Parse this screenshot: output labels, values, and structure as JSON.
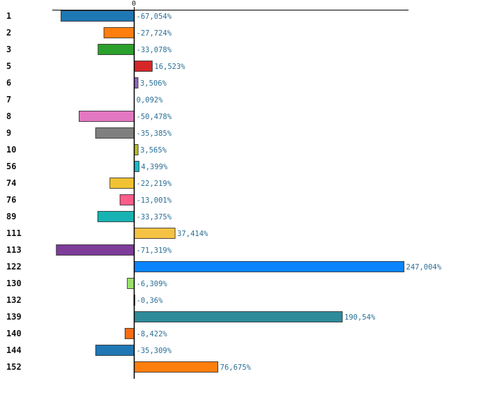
{
  "chart_data": {
    "type": "bar",
    "orientation": "horizontal",
    "title": "",
    "xlabel": "",
    "ylabel": "",
    "grid": false,
    "xlim": [
      -92,
      273
    ],
    "zero_tick": "0",
    "categories": [
      "1",
      "2",
      "3",
      "5",
      "6",
      "7",
      "8",
      "9",
      "10",
      "56",
      "74",
      "76",
      "89",
      "111",
      "113",
      "122",
      "130",
      "132",
      "139",
      "140",
      "144",
      "152"
    ],
    "values": [
      -67.054,
      -27.724,
      -33.078,
      16.523,
      3.506,
      0.092,
      -50.478,
      -35.385,
      3.565,
      4.399,
      -22.219,
      -13.001,
      -33.375,
      37.414,
      -71.319,
      247.004,
      -6.309,
      -0.36,
      190.54,
      -8.422,
      -35.309,
      76.675
    ],
    "value_labels": [
      "-67,054%",
      "-27,724%",
      "-33,078%",
      "16,523%",
      "3,506%",
      "0,092%",
      "-50,478%",
      "-35,385%",
      "3,565%",
      "4,399%",
      "-22,219%",
      "-13,001%",
      "-33,375%",
      "37,414%",
      "-71,319%",
      "247,004%",
      "-6,309%",
      "-0,36%",
      "190,54%",
      "-8,422%",
      "-35,309%",
      "76,675%"
    ],
    "colors": [
      "#1f77b4",
      "#ff7f0e",
      "#2ca02c",
      "#d62728",
      "#9467bd",
      "#8c564b",
      "#e377c2",
      "#7f7f7f",
      "#bcbd22",
      "#17becf",
      "#f1c232",
      "#ff5c8a",
      "#17b3b3",
      "#f6c244",
      "#7d3c98",
      "#0a84ff",
      "#99e06a",
      "#c7c7c7",
      "#2e8b9a",
      "#ff6a13",
      "#1f77b4",
      "#ff7f0e"
    ]
  }
}
